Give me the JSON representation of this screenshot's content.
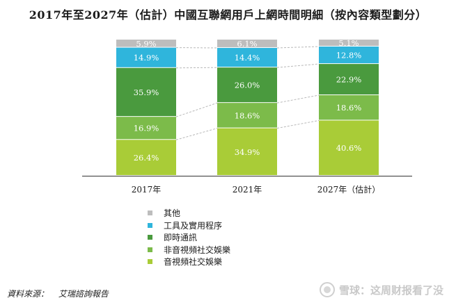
{
  "title": "2017年至2027年（估計）中國互聯網用戶上網時間明細（按內容類型劃分）",
  "chart_data": {
    "type": "bar",
    "stacked": true,
    "percent": true,
    "categories": [
      "2017年",
      "2021年",
      "2027年（估計）"
    ],
    "series": [
      {
        "name": "音視頻社交娛樂",
        "color": "#a9cc37",
        "values": [
          26.4,
          34.9,
          40.6
        ],
        "labels": [
          "26.4%",
          "34.9%",
          "40.6%"
        ]
      },
      {
        "name": "非音視頻社交娛樂",
        "color": "#7cbb4a",
        "values": [
          16.9,
          18.6,
          18.6
        ],
        "labels": [
          "16.9%",
          "18.6%",
          "18.6%"
        ]
      },
      {
        "name": "即時通訊",
        "color": "#4a9a3e",
        "values": [
          35.9,
          26.0,
          22.9
        ],
        "labels": [
          "35.9%",
          "26.0%",
          "22.9%"
        ]
      },
      {
        "name": "工具及實用程序",
        "color": "#2fb5dc",
        "values": [
          14.9,
          14.4,
          12.8
        ],
        "labels": [
          "14.9%",
          "14.4%",
          "12.8%"
        ]
      },
      {
        "name": "其他",
        "color": "#bdbdbd",
        "values": [
          5.9,
          6.1,
          5.1
        ],
        "labels": [
          "5.9%",
          "6.1%",
          "5.1%"
        ]
      }
    ],
    "ylim": [
      0,
      100
    ],
    "legend_position": "bottom",
    "grid": false,
    "connector_lines": "dashed"
  },
  "source": {
    "label": "資料來源：",
    "value": "艾瑞諮詢報告"
  },
  "watermark": {
    "text": "雪球：这周财报看了没"
  }
}
